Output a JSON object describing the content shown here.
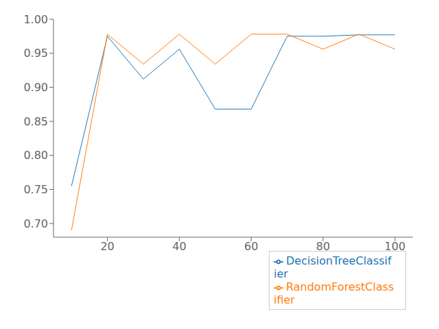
{
  "chart_data": {
    "type": "line",
    "x": [
      10,
      20,
      30,
      40,
      50,
      60,
      70,
      80,
      90,
      100
    ],
    "series": [
      {
        "name": "DecisionTreeClassifier",
        "color": "#1f77b4",
        "values": [
          0.755,
          0.975,
          0.912,
          0.956,
          0.868,
          0.868,
          0.975,
          0.975,
          0.977,
          0.977
        ]
      },
      {
        "name": "RandomForestClassifier",
        "color": "#ff7f0e",
        "values": [
          0.69,
          0.978,
          0.934,
          0.978,
          0.934,
          0.978,
          0.978,
          0.956,
          0.978,
          0.956
        ]
      }
    ],
    "xlim": [
      5,
      105
    ],
    "xticks": [
      20,
      40,
      60,
      80,
      100
    ],
    "ylim": [
      0.68,
      1.0
    ],
    "yticks": [
      {
        "value": 0.7,
        "label": "0.70"
      },
      {
        "value": 0.75,
        "label": "0.75"
      },
      {
        "value": 0.8,
        "label": "0.80"
      },
      {
        "value": 0.85,
        "label": "0.85"
      },
      {
        "value": 0.9,
        "label": "0.90"
      },
      {
        "value": 0.95,
        "label": "0.95"
      },
      {
        "value": 1.0,
        "label": "1.00"
      }
    ],
    "legend": "lower right"
  }
}
